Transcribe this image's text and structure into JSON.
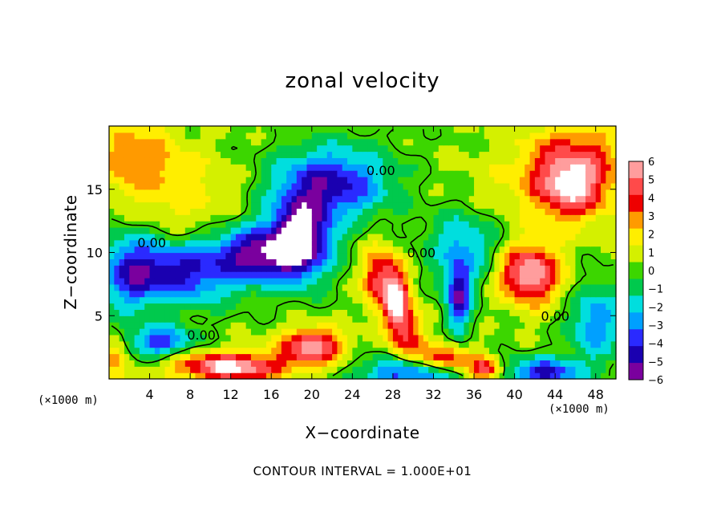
{
  "chart_data": {
    "type": "heatmap",
    "title": "zonal velocity",
    "xlabel": "X−coordinate",
    "ylabel": "Z−coordinate",
    "x_unit": "(×1000 m)",
    "y_unit": "(×1000 m)",
    "footer": "CONTOUR INTERVAL = 1.000E+01",
    "xlim": [
      0,
      50
    ],
    "ylim": [
      0,
      20
    ],
    "x_ticks": [
      4,
      8,
      12,
      16,
      20,
      24,
      28,
      32,
      36,
      40,
      44,
      48
    ],
    "y_ticks": [
      5,
      10,
      15
    ],
    "colorbar": {
      "levels": [
        6,
        5,
        4,
        3,
        2,
        1,
        0,
        -1,
        -2,
        -3,
        -4,
        -5,
        -6
      ],
      "colors": [
        "#ff9d9d",
        "#ff4a4a",
        "#ee0000",
        "#ff9a00",
        "#ffee00",
        "#d4f000",
        "#3cd600",
        "#00c94d",
        "#00dede",
        "#00a0ff",
        "#2a2aff",
        "#1a00b0",
        "#7a009e"
      ],
      "outside_color": "#ffffff"
    },
    "contour_labels": [
      {
        "text": "0.00",
        "x": 2.8,
        "z": 10.8
      },
      {
        "text": "0.00",
        "x": 25.4,
        "z": 16.5
      },
      {
        "text": "0.00",
        "x": 29.4,
        "z": 10.0
      },
      {
        "text": "0.00",
        "x": 42.6,
        "z": 5.0
      },
      {
        "text": "0.00",
        "x": 7.7,
        "z": 3.5
      }
    ],
    "features": [
      {
        "value": -6.5,
        "x": 19,
        "z": 11.3,
        "sx": 2.8,
        "sz": 3.2
      },
      {
        "value": -6.0,
        "x": 15,
        "z": 10.0,
        "sx": 4.5,
        "sz": 2.2
      },
      {
        "value": -5.2,
        "x": 22,
        "z": 15.5,
        "sx": 5.5,
        "sz": 2.8
      },
      {
        "value": -5.0,
        "x": 7,
        "z": 8.5,
        "sx": 5.5,
        "sz": 2.5
      },
      {
        "value": -5.5,
        "x": 34.5,
        "z": 6.5,
        "sx": 1.2,
        "sz": 2.6
      },
      {
        "value": -5.0,
        "x": 30,
        "z": 0.5,
        "sx": 5.0,
        "sz": 1.2
      },
      {
        "value": -5.0,
        "x": 43,
        "z": 0.5,
        "sx": 3.5,
        "sz": 1.2
      },
      {
        "value": -3.5,
        "x": 2,
        "z": 8.5,
        "sx": 3.0,
        "sz": 3.0
      },
      {
        "value": -4.5,
        "x": 5,
        "z": 3.0,
        "sx": 3.0,
        "sz": 1.2
      },
      {
        "value": -3.0,
        "x": 35,
        "z": 10.5,
        "sx": 3.5,
        "sz": 3.0
      },
      {
        "value": -3.5,
        "x": 48,
        "z": 4.5,
        "sx": 2.5,
        "sz": 3.0
      },
      {
        "value": 6.5,
        "x": 28.3,
        "z": 6.5,
        "sx": 1.2,
        "sz": 2.5
      },
      {
        "value": 6.5,
        "x": 41.5,
        "z": 8.3,
        "sx": 3.0,
        "sz": 2.3
      },
      {
        "value": 5.0,
        "x": 45.5,
        "z": 15.0,
        "sx": 3.5,
        "sz": 2.5
      },
      {
        "value": 3.5,
        "x": 46,
        "z": 17.5,
        "sx": 5.0,
        "sz": 3.0
      },
      {
        "value": 6.5,
        "x": 12,
        "z": 1.0,
        "sx": 5.5,
        "sz": 1.1
      },
      {
        "value": 6.0,
        "x": 20,
        "z": 2.6,
        "sx": 3.0,
        "sz": 1.4
      },
      {
        "value": 5.0,
        "x": 33,
        "z": 1.5,
        "sx": 2.5,
        "sz": 1.2
      },
      {
        "value": 5.5,
        "x": 37,
        "z": 0.8,
        "sx": 1.5,
        "sz": 1.0
      },
      {
        "value": 4.5,
        "x": 26.5,
        "z": 8.0,
        "sx": 1.5,
        "sz": 2.5
      },
      {
        "value": 4.0,
        "x": 29.5,
        "z": 3.5,
        "sx": 1.5,
        "sz": 2.5
      },
      {
        "value": 3.0,
        "x": 2.5,
        "z": 17.5,
        "sx": 4.0,
        "sz": 3.0
      },
      {
        "value": 3.0,
        "x": 0.5,
        "z": 1.8,
        "sx": 1.2,
        "sz": 1.5
      },
      {
        "value": 1.5,
        "x": 8,
        "z": 14,
        "sx": 5.0,
        "sz": 4.0
      },
      {
        "value": 0.8,
        "x": 39,
        "z": 15,
        "sx": 6.0,
        "sz": 3.5
      }
    ],
    "grid": false
  }
}
